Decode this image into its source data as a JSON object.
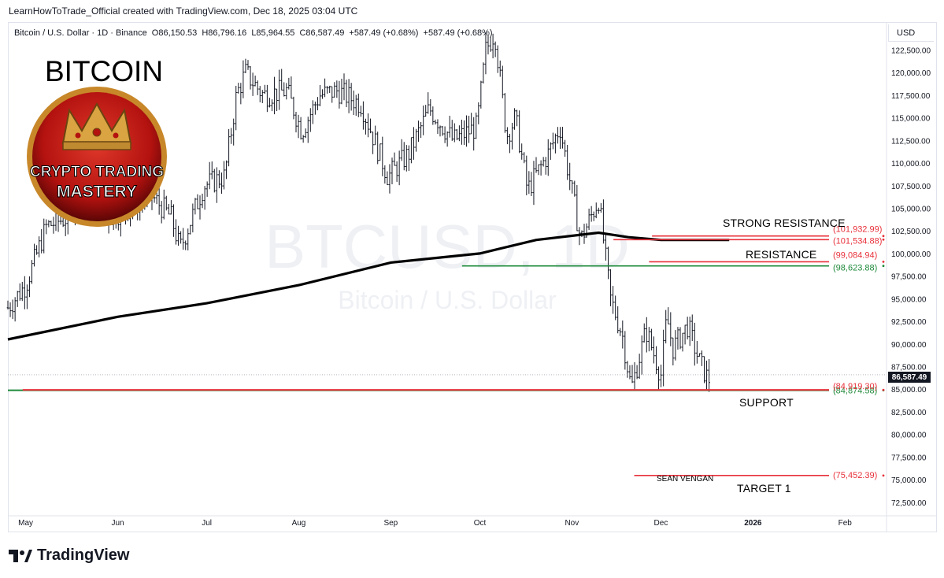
{
  "header": {
    "caption": "LearnHowToTrade_Official created with TradingView.com, Dec 18, 2025 03:04 UTC"
  },
  "symbol": {
    "name": "Bitcoin / U.S. Dollar · 1D · Binance",
    "open": "O86,150.53",
    "high": "H86,796.16",
    "low": "L85,964.55",
    "close": "C86,587.49",
    "change": "+587.49 (+0.68%)",
    "change2": "+587.49 (+0.68%)"
  },
  "currency": "USD",
  "watermark": {
    "ticker": "BTCUSD, 1D",
    "name": "Bitcoin / U.S. Dollar"
  },
  "overlay": {
    "title": "BITCOIN",
    "logo_line1": "CRYPTO TRADING",
    "logo_line2": "MASTERY",
    "signature": "SEAN VENGAN"
  },
  "annotations": {
    "strong_resistance": "STRONG RESISTANCE",
    "resistance": "RESISTANCE",
    "support": "SUPPORT",
    "target": "TARGET 1"
  },
  "current_price": "86,587.49",
  "brand": "TradingView",
  "colors": {
    "up": "#131722",
    "down": "#131722",
    "red_line": "#e8313b",
    "green_line": "#1e8a3a",
    "ma": "#000000",
    "accent_text": "#e8313b"
  },
  "chart_data": {
    "type": "line",
    "title": "",
    "ylim": [
      71000,
      125500
    ],
    "y_ticks": [
      "72,500.00",
      "75,000.00",
      "77,500.00",
      "80,000.00",
      "82,500.00",
      "85,000.00",
      "87,500.00",
      "90,000.00",
      "92,500.00",
      "95,000.00",
      "97,500.00",
      "100,000.00",
      "102,500.00",
      "105,000.00",
      "107,500.00",
      "110,000.00",
      "112,500.00",
      "115,000.00",
      "117,500.00",
      "120,000.00",
      "122,500.00"
    ],
    "x_ticks": [
      "May",
      "Jun",
      "Jul",
      "Aug",
      "Sep",
      "Oct",
      "Nov",
      "Dec",
      "2026",
      "Feb"
    ],
    "series": [
      {
        "kind": "price",
        "x": [
          "2025-04-25",
          "2025-05-01",
          "2025-05-08",
          "2025-05-15",
          "2025-05-22",
          "2025-05-29",
          "2025-06-05",
          "2025-06-12",
          "2025-06-19",
          "2025-06-22",
          "2025-06-30",
          "2025-07-07",
          "2025-07-11",
          "2025-07-14",
          "2025-07-20",
          "2025-07-28",
          "2025-08-02",
          "2025-08-08",
          "2025-08-14",
          "2025-08-22",
          "2025-08-31",
          "2025-09-07",
          "2025-09-14",
          "2025-09-22",
          "2025-09-30",
          "2025-10-03",
          "2025-10-06",
          "2025-10-10",
          "2025-10-13",
          "2025-10-17",
          "2025-10-24",
          "2025-10-28",
          "2025-11-04",
          "2025-11-10",
          "2025-11-14",
          "2025-11-18",
          "2025-11-21",
          "2025-11-26",
          "2025-12-01",
          "2025-12-03",
          "2025-12-05",
          "2025-12-10",
          "2025-12-14",
          "2025-12-17",
          "2025-12-18"
        ],
        "y": [
          94000,
          96500,
          103000,
          104000,
          109000,
          104000,
          105000,
          106500,
          104000,
          100500,
          107500,
          108500,
          117500,
          120000,
          117500,
          118000,
          113500,
          117500,
          118000,
          116500,
          108500,
          111000,
          116000,
          112500,
          114000,
          122500,
          124500,
          113000,
          115000,
          107000,
          111000,
          114000,
          101500,
          106000,
          95000,
          91000,
          85000,
          91500,
          86500,
          93000,
          89500,
          92000,
          88000,
          86000,
          86587.49
        ]
      },
      {
        "kind": "moving_average",
        "x": [
          "2025-04-25",
          "2025-06-01",
          "2025-07-01",
          "2025-08-01",
          "2025-09-01",
          "2025-10-01",
          "2025-10-20",
          "2025-11-10",
          "2025-11-20",
          "2025-12-01",
          "2025-12-24"
        ],
        "y": [
          90500,
          93000,
          94500,
          96500,
          99000,
          100000,
          101500,
          102300,
          101800,
          101500,
          101500
        ]
      }
    ],
    "levels": [
      {
        "label": "(101,932.99)",
        "value": 101932.99
      },
      {
        "label": "(101,534.88)",
        "value": 101534.88
      },
      {
        "label": "(99,084.94)",
        "value": 99084.94
      },
      {
        "label": "(98,623.88)",
        "value": 98623.88
      },
      {
        "label": "(84,874.58)",
        "value": 84874.58
      },
      {
        "label": "(84,919.30)",
        "value": 84919.3
      },
      {
        "label": "(75,452.39)",
        "value": 75452.39
      }
    ]
  }
}
